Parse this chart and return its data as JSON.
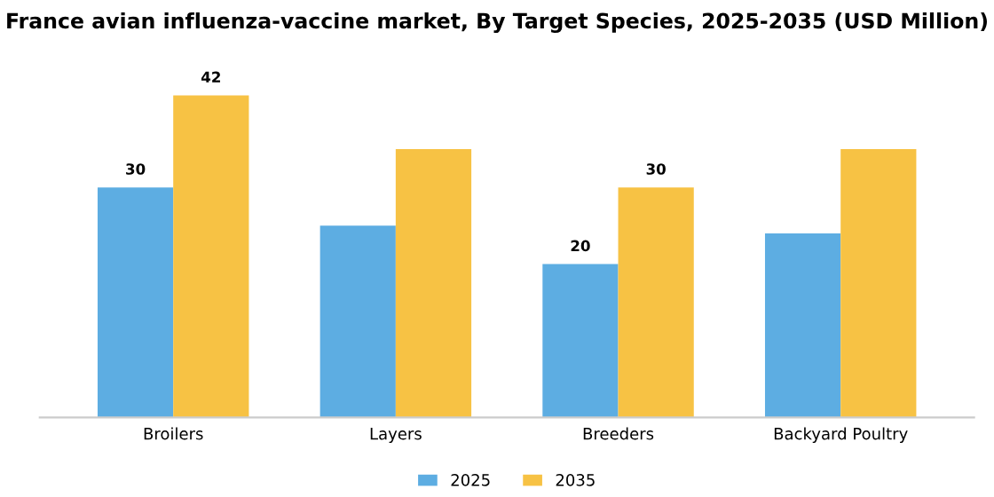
{
  "chart_data": {
    "type": "bar",
    "title": "France avian influenza-vaccine market, By Target Species, 2025-2035 (USD Million)",
    "categories": [
      "Broilers",
      "Layers",
      "Breeders",
      "Backyard Poultry"
    ],
    "series": [
      {
        "name": "2025",
        "color": "#5dade2",
        "values": [
          30,
          25,
          20,
          24
        ],
        "value_labels": [
          "30",
          null,
          "20",
          null
        ]
      },
      {
        "name": "2035",
        "color": "#f7c244",
        "values": [
          42,
          35,
          30,
          35
        ],
        "value_labels": [
          "42",
          null,
          "30",
          null
        ]
      }
    ],
    "legend": "bottom",
    "grid": false
  }
}
